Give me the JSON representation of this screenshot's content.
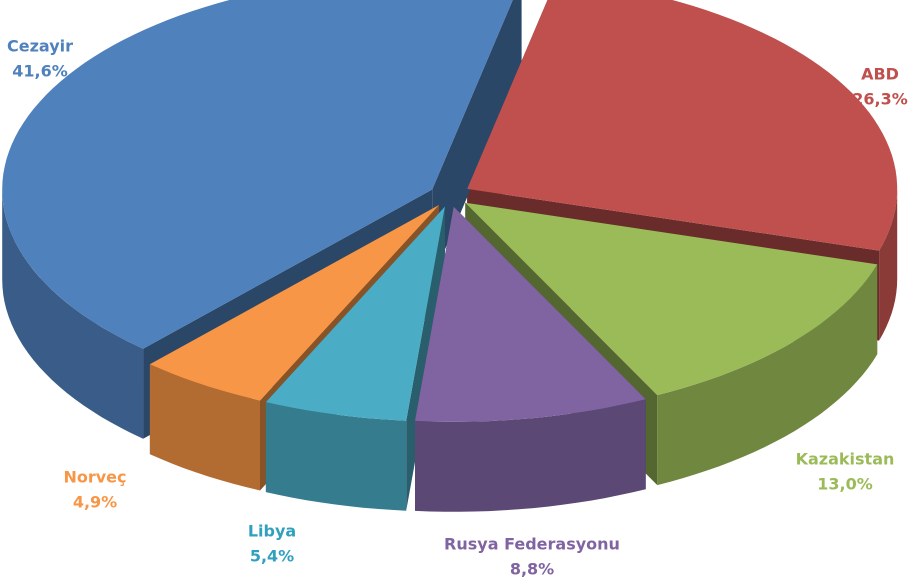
{
  "chart_data": {
    "type": "pie",
    "categories": [
      "ABD",
      "Kazakistan",
      "Rusya Federasyonu",
      "Libya",
      "Norveç",
      "Cezayir"
    ],
    "values": [
      26.3,
      13.0,
      8.8,
      5.4,
      4.9,
      41.6
    ],
    "value_labels": [
      "26,3%",
      "13,0%",
      "8,8%",
      "5,4%",
      "4,9%",
      "41,6%"
    ],
    "colors": [
      "#c0504d",
      "#9bbb59",
      "#8064a2",
      "#4bacc6",
      "#f79646",
      "#4f81bd"
    ]
  }
}
